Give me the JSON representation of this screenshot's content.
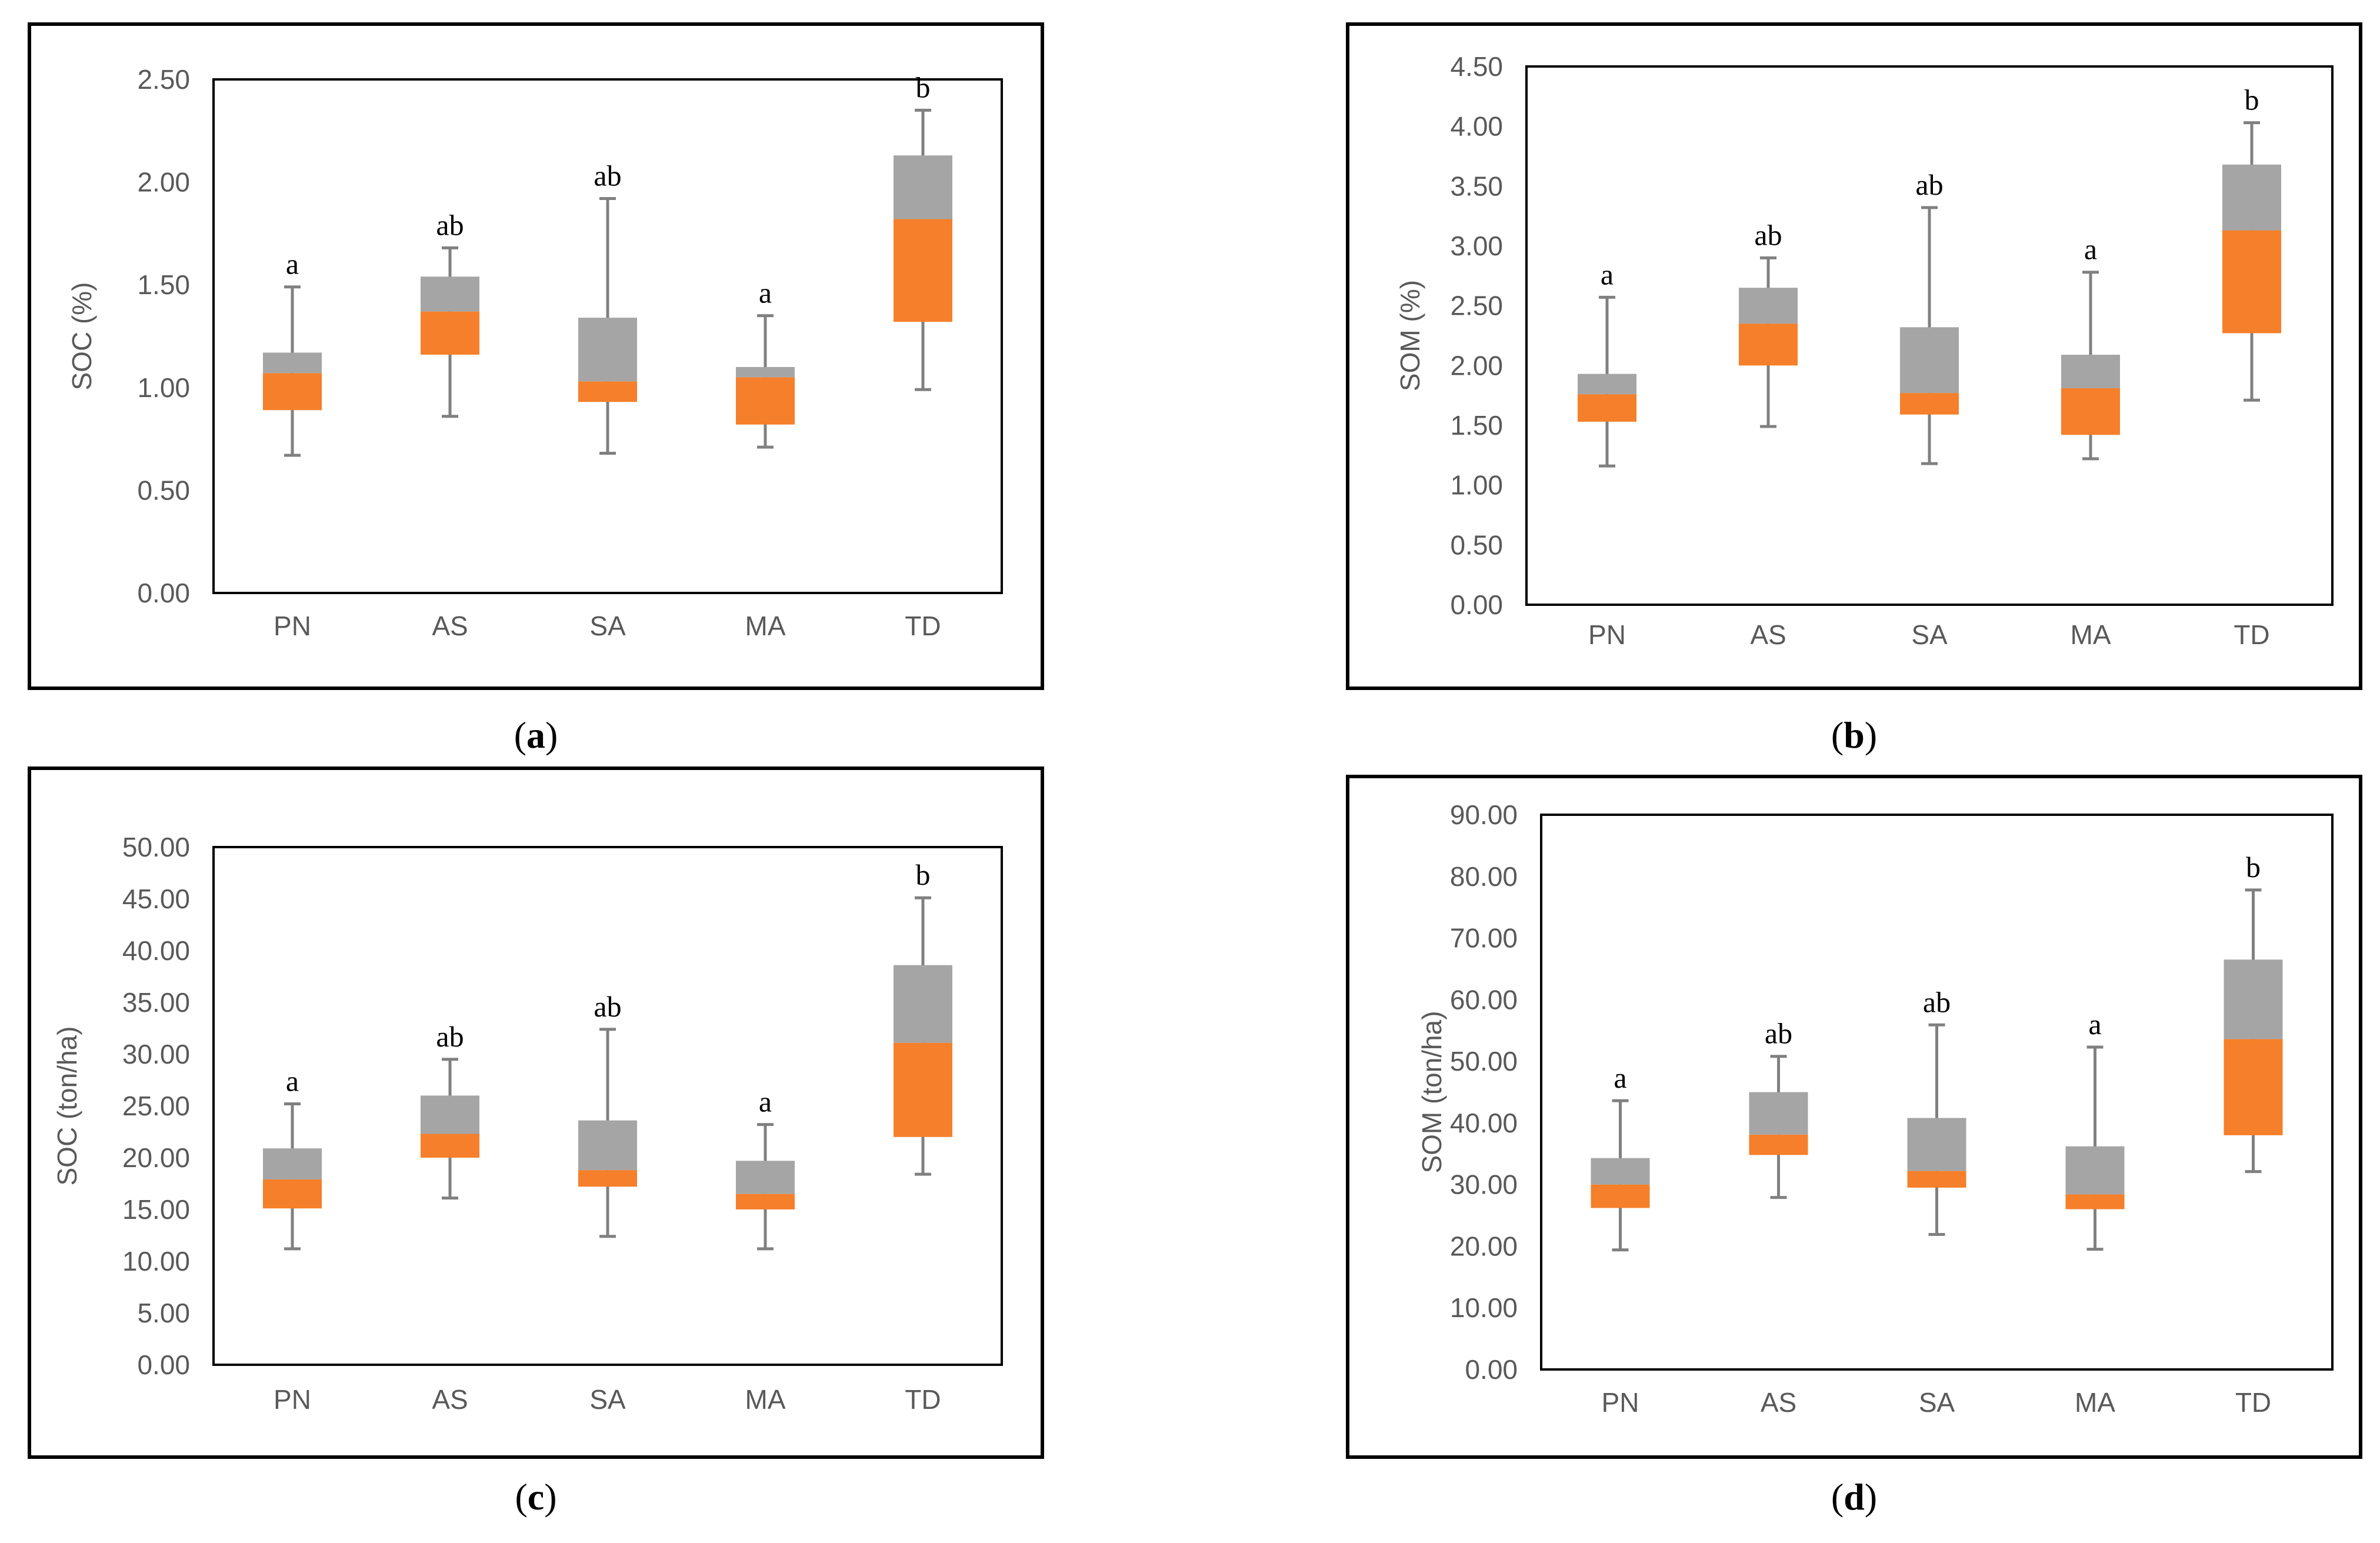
{
  "colors": {
    "lower_box": "#F57F2A",
    "upper_box": "#A5A5A5",
    "whisker": "#808080",
    "axis_text": "#595959",
    "frame": "#000000"
  },
  "chart_data": [
    {
      "panel": "a",
      "type": "box",
      "ylabel": "SOC (%)",
      "ylim": [
        0,
        2.5
      ],
      "yticks": [
        "0.00",
        "0.50",
        "1.00",
        "1.50",
        "2.00",
        "2.50"
      ],
      "categories": [
        "PN",
        "AS",
        "SA",
        "MA",
        "TD"
      ],
      "min": [
        0.67,
        0.86,
        0.68,
        0.71,
        0.99
      ],
      "q1": [
        0.89,
        1.16,
        0.93,
        0.82,
        1.32
      ],
      "median": [
        1.07,
        1.37,
        1.03,
        1.05,
        1.82
      ],
      "q3": [
        1.17,
        1.54,
        1.34,
        1.1,
        2.13
      ],
      "max": [
        1.49,
        1.68,
        1.92,
        1.35,
        2.35
      ],
      "letters": [
        "a",
        "ab",
        "ab",
        "a",
        "b"
      ]
    },
    {
      "panel": "b",
      "type": "box",
      "ylabel": "SOM (%)",
      "ylim": [
        0,
        4.5
      ],
      "yticks": [
        "0.00",
        "0.50",
        "1.00",
        "1.50",
        "2.00",
        "2.50",
        "3.00",
        "3.50",
        "4.00",
        "4.50"
      ],
      "categories": [
        "PN",
        "AS",
        "SA",
        "MA",
        "TD"
      ],
      "min": [
        1.16,
        1.49,
        1.18,
        1.22,
        1.71
      ],
      "q1": [
        1.53,
        2.0,
        1.59,
        1.42,
        2.27
      ],
      "median": [
        1.76,
        2.35,
        1.77,
        1.81,
        3.13
      ],
      "q3": [
        1.93,
        2.65,
        2.32,
        2.09,
        3.68
      ],
      "max": [
        2.57,
        2.9,
        3.32,
        2.78,
        4.03
      ],
      "letters": [
        "a",
        "ab",
        "ab",
        "a",
        "b"
      ]
    },
    {
      "panel": "c",
      "type": "box",
      "ylabel": "SOC (ton/ha)",
      "ylim": [
        0,
        50
      ],
      "yticks": [
        "0.00",
        "5.00",
        "10.00",
        "15.00",
        "20.00",
        "25.00",
        "30.00",
        "35.00",
        "40.00",
        "45.00",
        "50.00"
      ],
      "categories": [
        "PN",
        "AS",
        "SA",
        "MA",
        "TD"
      ],
      "min": [
        11.2,
        16.1,
        12.4,
        11.2,
        18.4
      ],
      "q1": [
        15.1,
        20.0,
        17.2,
        15.0,
        22.0
      ],
      "median": [
        17.9,
        22.3,
        18.8,
        16.5,
        31.1
      ],
      "q3": [
        20.9,
        26.0,
        23.6,
        19.7,
        38.6
      ],
      "max": [
        25.2,
        29.5,
        32.4,
        23.2,
        45.1
      ],
      "letters": [
        "a",
        "ab",
        "ab",
        "a",
        "b"
      ]
    },
    {
      "panel": "d",
      "type": "box",
      "ylabel": "SOM (ton/ha)",
      "ylim": [
        0,
        90
      ],
      "yticks": [
        "0.00",
        "10.00",
        "20.00",
        "30.00",
        "40.00",
        "50.00",
        "60.00",
        "70.00",
        "80.00",
        "90.00"
      ],
      "categories": [
        "PN",
        "AS",
        "SA",
        "MA",
        "TD"
      ],
      "min": [
        19.4,
        27.9,
        21.9,
        19.5,
        32.1
      ],
      "q1": [
        26.2,
        34.8,
        29.5,
        26.0,
        38.0
      ],
      "median": [
        30.0,
        38.1,
        32.2,
        28.4,
        53.6
      ],
      "q3": [
        34.3,
        45.0,
        40.8,
        36.2,
        66.5
      ],
      "max": [
        43.6,
        50.8,
        55.9,
        52.3,
        77.8
      ],
      "letters": [
        "a",
        "ab",
        "ab",
        "a",
        "b"
      ]
    }
  ],
  "captions": [
    "a",
    "b",
    "c",
    "d"
  ]
}
